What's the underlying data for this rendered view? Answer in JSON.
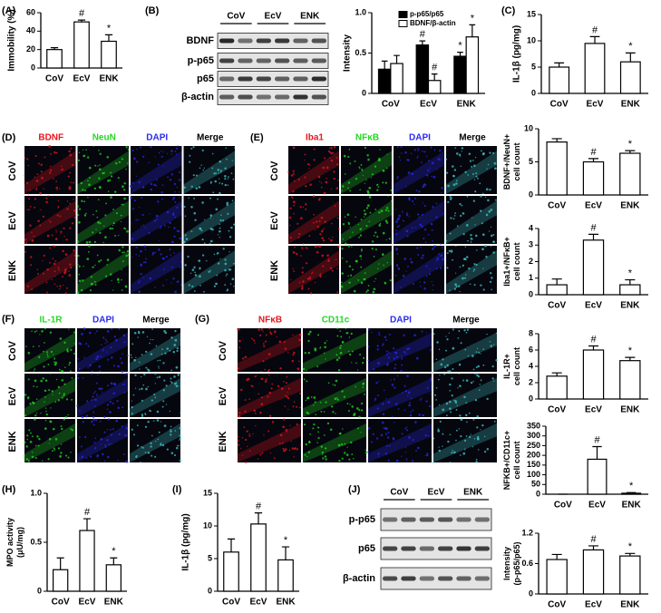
{
  "chart_data": [
    {
      "type": "bar",
      "panel_label": "(A)",
      "ylabel": "Immobility (%)",
      "categories": [
        "CoV",
        "EcV",
        "ENK"
      ],
      "ylim": [
        0,
        60
      ],
      "yticks": [
        0,
        20,
        40,
        60
      ],
      "series": [
        {
          "color": "#ffffff",
          "values": [
            20,
            50,
            29
          ],
          "errors": [
            2,
            2,
            7
          ],
          "annotations": [
            null,
            "#",
            "*"
          ]
        }
      ]
    },
    {
      "type": "bar",
      "ylabel": "Intensity",
      "categories": [
        "CoV",
        "EcV",
        "ENK"
      ],
      "ylim": [
        0,
        1.0
      ],
      "yticks": [
        0,
        0.5,
        {
          "value": 1.0,
          "label": "1.0"
        }
      ],
      "legend": "upper left",
      "series": [
        {
          "name": "p-p65/p65",
          "color": "#000000",
          "values": [
            0.3,
            0.6,
            0.46
          ],
          "errors": [
            0.1,
            0.05,
            0.05
          ],
          "annotations": [
            null,
            "#",
            "*"
          ]
        },
        {
          "name": "BDNF/β-actin",
          "color": "#ffffff",
          "values": [
            0.37,
            0.16,
            0.7
          ],
          "errors": [
            0.1,
            0.08,
            0.15
          ],
          "annotations": [
            null,
            "#",
            "*"
          ]
        }
      ]
    },
    {
      "type": "bar",
      "panel_label": "(C)",
      "ylabel": "IL-1β (pg/mg)",
      "categories": [
        "CoV",
        "EcV",
        "ENK"
      ],
      "ylim": [
        0,
        15
      ],
      "yticks": [
        0,
        5,
        10,
        15
      ],
      "series": [
        {
          "color": "#ffffff",
          "values": [
            5,
            9.5,
            6
          ],
          "errors": [
            0.8,
            1.3,
            1.7
          ],
          "annotations": [
            null,
            "#",
            "*"
          ]
        }
      ]
    },
    {
      "type": "bar",
      "ylabel": [
        "BDNF+/NeuN+",
        "cell count"
      ],
      "categories": [
        "CoV",
        "EcV",
        "ENK"
      ],
      "ylim": [
        0,
        10
      ],
      "yticks": [
        0,
        5,
        10
      ],
      "series": [
        {
          "color": "#ffffff",
          "values": [
            8,
            5,
            6.3
          ],
          "errors": [
            0.5,
            0.5,
            0.4
          ],
          "annotations": [
            null,
            "#",
            "*"
          ]
        }
      ]
    },
    {
      "type": "bar",
      "ylabel": [
        "Iba1+/NFκB+",
        "cell count"
      ],
      "categories": [
        "CoV",
        "EcV",
        "ENK"
      ],
      "ylim": [
        0,
        4
      ],
      "yticks": [
        0,
        1,
        2,
        3,
        4
      ],
      "series": [
        {
          "color": "#ffffff",
          "values": [
            0.6,
            3.3,
            0.6
          ],
          "errors": [
            0.35,
            0.35,
            0.3
          ],
          "annotations": [
            null,
            "#",
            "*"
          ]
        }
      ]
    },
    {
      "type": "bar",
      "ylabel": [
        "IL-1R+",
        "cell count"
      ],
      "categories": [
        "CoV",
        "EcV",
        "ENK"
      ],
      "ylim": [
        0,
        8
      ],
      "yticks": [
        0,
        2,
        4,
        6,
        8
      ],
      "series": [
        {
          "color": "#ffffff",
          "values": [
            2.8,
            6,
            4.7
          ],
          "errors": [
            0.4,
            0.5,
            0.4
          ],
          "annotations": [
            null,
            "#",
            "*"
          ]
        }
      ]
    },
    {
      "type": "bar",
      "ylabel": [
        "NFKB+/CD11c+",
        "cell count"
      ],
      "categories": [
        "CoV",
        "EcV",
        "ENK"
      ],
      "ylim": [
        0,
        350
      ],
      "yticks": [
        0,
        50,
        100,
        150,
        200,
        250,
        300,
        350
      ],
      "series": [
        {
          "color": "#ffffff",
          "values": [
            0,
            180,
            5
          ],
          "errors": [
            0,
            65,
            3
          ],
          "annotations": [
            null,
            "#",
            "*"
          ]
        }
      ]
    },
    {
      "type": "bar",
      "ylabel": [
        "Intensity",
        "(p-p65/p65)"
      ],
      "categories": [
        "CoV",
        "EcV",
        "ENK"
      ],
      "ylim": [
        0,
        1.2
      ],
      "yticks": [
        0,
        0.6,
        1.2
      ],
      "series": [
        {
          "color": "#ffffff",
          "values": [
            0.68,
            0.87,
            0.75
          ],
          "errors": [
            0.1,
            0.08,
            0.05
          ],
          "annotations": [
            null,
            "#",
            "*"
          ]
        }
      ]
    },
    {
      "type": "bar",
      "panel_label": "(H)",
      "ylabel": [
        "MPO activity",
        "(μU/mg)"
      ],
      "categories": [
        "CoV",
        "EcV",
        "ENK"
      ],
      "ylim": [
        0,
        1.0
      ],
      "yticks": [
        0,
        0.5,
        {
          "value": 1.0,
          "label": "1.0"
        }
      ],
      "series": [
        {
          "color": "#ffffff",
          "values": [
            0.22,
            0.62,
            0.27
          ],
          "errors": [
            0.12,
            0.12,
            0.07
          ],
          "annotations": [
            null,
            "#",
            "*"
          ]
        }
      ]
    },
    {
      "type": "bar",
      "panel_label": "(I)",
      "ylabel": "IL-1β (pg/mg)",
      "categories": [
        "CoV",
        "EcV",
        "ENK"
      ],
      "ylim": [
        0,
        15
      ],
      "yticks": [
        0,
        5,
        10,
        15
      ],
      "series": [
        {
          "color": "#ffffff",
          "values": [
            6,
            10.3,
            4.8
          ],
          "errors": [
            2,
            1.7,
            2
          ],
          "annotations": [
            null,
            "#",
            "*"
          ]
        }
      ]
    }
  ],
  "blots": [
    {
      "label": "(B)",
      "columns": [
        "CoV",
        "EcV",
        "ENK"
      ],
      "rows": [
        "BDNF",
        "p-p65",
        "p65",
        "β-actin"
      ]
    },
    {
      "label": "(J)",
      "columns": [
        "CoV",
        "EcV",
        "ENK"
      ],
      "rows": [
        "p-p65",
        "p65",
        "β-actin"
      ]
    }
  ],
  "image_panels": [
    {
      "label": "(D)",
      "columns": [
        "BDNF",
        "NeuN",
        "DAPI",
        "Merge"
      ],
      "colors": [
        "#e8141c",
        "#22d822",
        "#2a2af0",
        "#000000"
      ],
      "rows": [
        "CoV",
        "EcV",
        "ENK"
      ]
    },
    {
      "label": "(E)",
      "columns": [
        "Iba1",
        "NFκB",
        "DAPI",
        "Merge"
      ],
      "colors": [
        "#e8141c",
        "#22d822",
        "#2a2af0",
        "#000000"
      ],
      "rows": [
        "CoV",
        "EcV",
        "ENK"
      ]
    },
    {
      "label": "(F)",
      "columns": [
        "IL-1R",
        "DAPI",
        "Merge"
      ],
      "colors": [
        "#22d822",
        "#2a2af0",
        "#000000"
      ],
      "rows": [
        "CoV",
        "EcV",
        "ENK"
      ]
    },
    {
      "label": "(G)",
      "columns": [
        "NFκB",
        "CD11c",
        "DAPI",
        "Merge"
      ],
      "colors": [
        "#e8141c",
        "#22d822",
        "#2a2af0",
        "#000000"
      ],
      "rows": [
        "CoV",
        "EcV",
        "ENK"
      ]
    }
  ]
}
